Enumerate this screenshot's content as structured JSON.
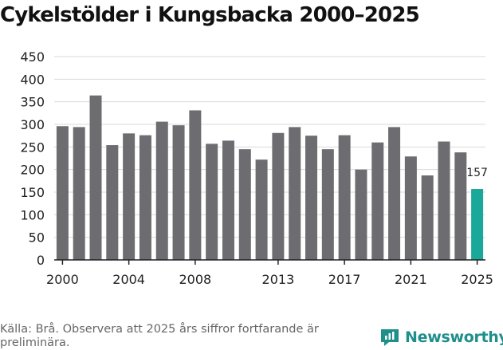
{
  "chart_data": {
    "type": "bar",
    "title": "Cykelstölder i Kungsbacka 2000–2025",
    "xlabel": "",
    "ylabel": "",
    "ylim": [
      0,
      450
    ],
    "yticks": [
      0,
      50,
      100,
      150,
      200,
      250,
      300,
      350,
      400,
      450
    ],
    "xtick_labels": [
      "2000",
      "2004",
      "2008",
      "2013",
      "2017",
      "2021",
      "2025"
    ],
    "categories": [
      "2000",
      "2001",
      "2002",
      "2003",
      "2004",
      "2005",
      "2006",
      "2007",
      "2008",
      "2009",
      "2010",
      "2011",
      "2012",
      "2013",
      "2014",
      "2015",
      "2016",
      "2017",
      "2018",
      "2019",
      "2020",
      "2021",
      "2022",
      "2023",
      "2024",
      "2025"
    ],
    "values": [
      296,
      294,
      364,
      254,
      280,
      276,
      306,
      298,
      331,
      257,
      264,
      245,
      222,
      281,
      294,
      275,
      245,
      276,
      200,
      260,
      294,
      229,
      187,
      262,
      238,
      157
    ],
    "highlight_index": 25,
    "data_labels": [
      {
        "index": 25,
        "text": "157"
      }
    ],
    "colors": {
      "bar": "#6d6c71",
      "highlight": "#1aa89b",
      "grid": "#d9d9d9",
      "axis": "#222222"
    }
  },
  "footer": {
    "source": "Källa: Brå. Observera att 2025 års siffror fortfarande är preliminära.",
    "brand": "Newsworthy"
  },
  "icons": {
    "brand_logo": "newsworthy-logo-icon"
  }
}
